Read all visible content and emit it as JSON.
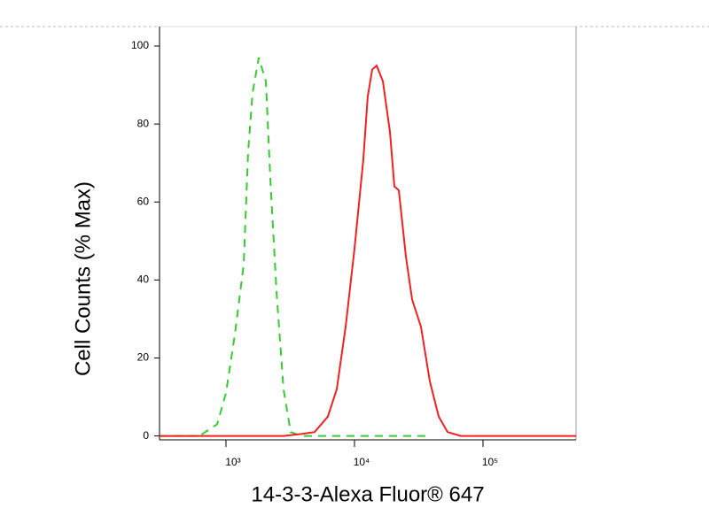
{
  "chart_data": {
    "type": "line",
    "x_label": "14-3-3-Alexa Fluor® 647",
    "y_label": "Cell Counts (% Max)",
    "xscale": "log",
    "xlim": [
      304,
      530000
    ],
    "xticks": [
      {
        "value": 1000,
        "label": "10³"
      },
      {
        "value": 10000,
        "label": "10⁴"
      },
      {
        "value": 100000,
        "label": "10⁵"
      }
    ],
    "ylim": [
      -1,
      105
    ],
    "yticks": [
      0,
      20,
      40,
      60,
      80,
      100
    ],
    "series": [
      {
        "color": "#33cc33",
        "style": "dashed",
        "x": [
          304,
          621,
          853,
          1000,
          1172,
          1374,
          1487,
          1611,
          1800,
          2043,
          2212,
          2472,
          2805,
          3187,
          3855,
          35600
        ],
        "values": [
          0,
          0,
          3,
          11,
          26,
          44,
          73,
          88,
          97,
          91,
          66,
          37,
          12,
          1,
          0,
          0
        ]
      },
      {
        "color": "#ee2222",
        "style": "solid",
        "x": [
          304,
          2805,
          3855,
          4894,
          6209,
          7278,
          8534,
          10000,
          11720,
          12680,
          13740,
          14870,
          16620,
          18880,
          20430,
          22130,
          25120,
          28070,
          32890,
          38550,
          45190,
          52970,
          67300,
          530000
        ],
        "values": [
          0,
          0,
          0.5,
          1,
          5,
          12,
          28,
          48,
          71,
          87,
          94,
          95,
          91,
          78,
          64,
          63,
          46,
          35,
          28,
          14,
          5,
          1,
          0,
          0
        ]
      }
    ]
  }
}
